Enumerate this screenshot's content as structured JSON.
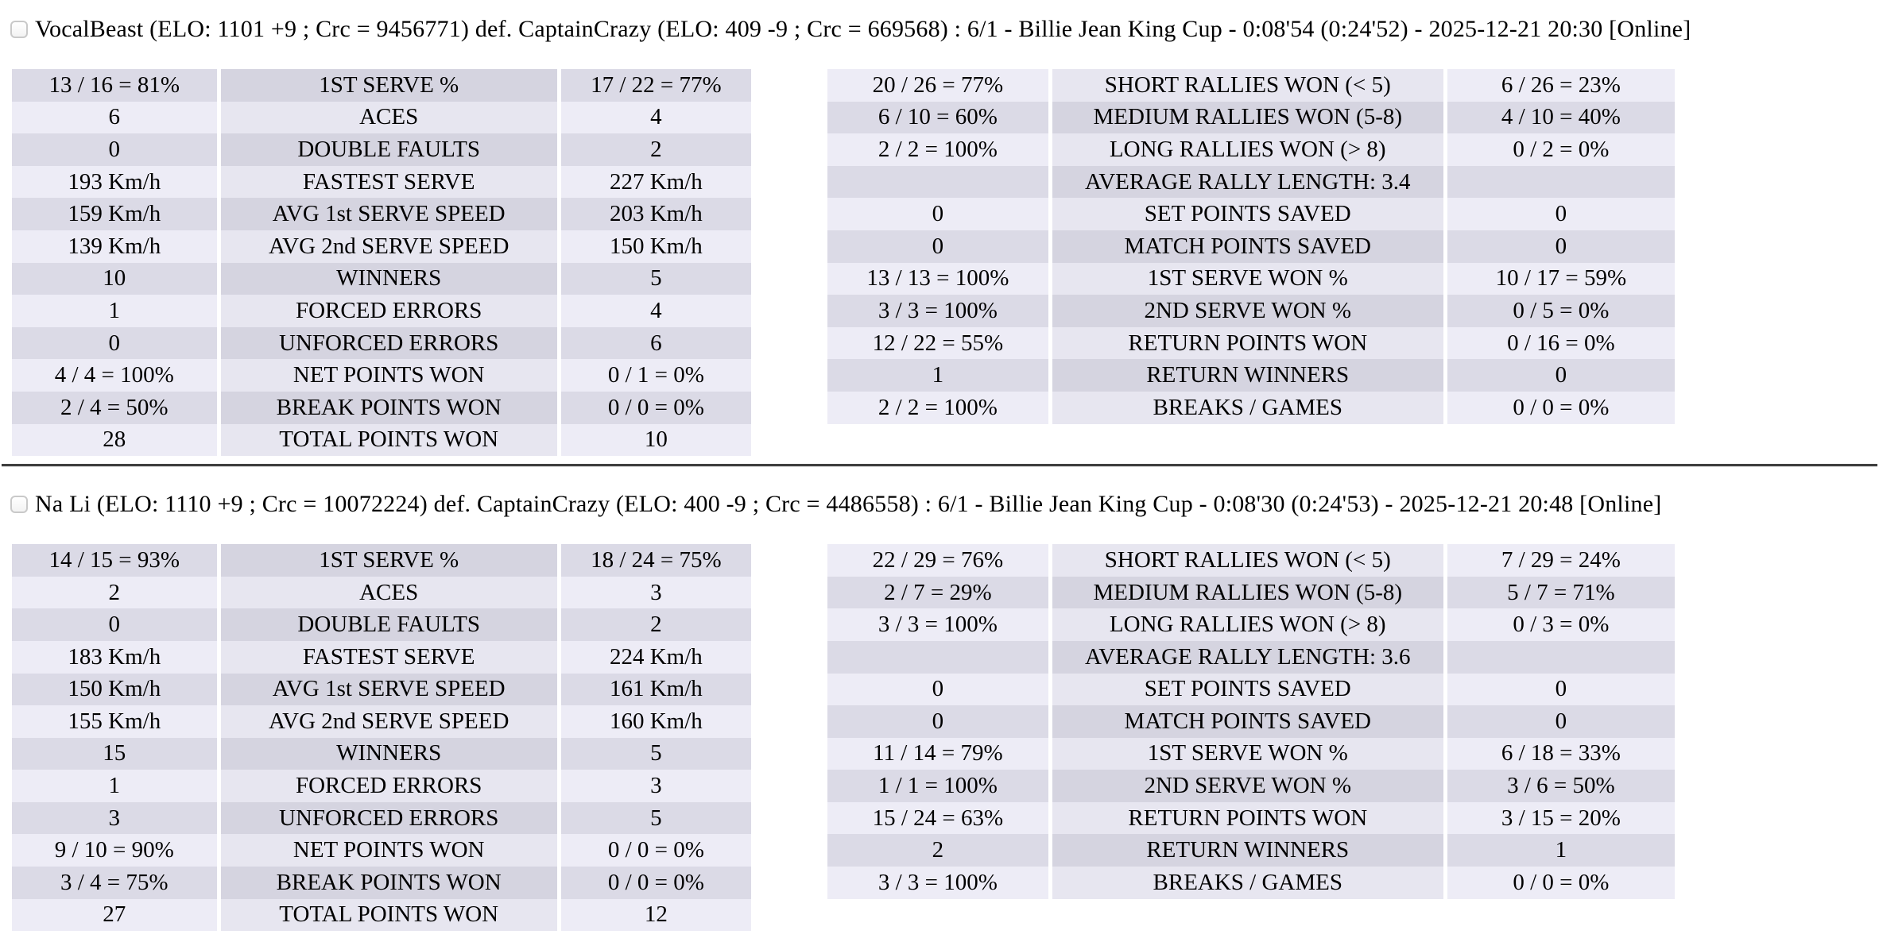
{
  "theme": {
    "background": "#FFFFFF",
    "text_color": "#000000",
    "row_light": "#EDECF6",
    "row_light_center": "#E7E6F0",
    "row_dark": "#DBDAE6",
    "row_dark_center": "#D5D4E0"
  },
  "matches": [
    {
      "title": "VocalBeast (ELO: 1101 +9 ; Crc = 9456771) def. CaptainCrazy (ELO: 409 -9 ; Crc = 669568) : 6/1 - Billie Jean King Cup - 0:08'54 (0:24'52) - 2025-12-21 20:30 [Online]",
      "checkbox_checked": false,
      "serve_stats": [
        {
          "p1": "13 / 16 = 81%",
          "label": "1ST SERVE %",
          "p2": "17 / 22 = 77%"
        },
        {
          "p1": "6",
          "label": "ACES",
          "p2": "4"
        },
        {
          "p1": "0",
          "label": "DOUBLE FAULTS",
          "p2": "2"
        },
        {
          "p1": "193 Km/h",
          "label": "FASTEST SERVE",
          "p2": "227 Km/h"
        },
        {
          "p1": "159 Km/h",
          "label": "AVG 1st SERVE SPEED",
          "p2": "203 Km/h"
        },
        {
          "p1": "139 Km/h",
          "label": "AVG 2nd SERVE SPEED",
          "p2": "150 Km/h"
        },
        {
          "p1": "10",
          "label": "WINNERS",
          "p2": "5"
        },
        {
          "p1": "1",
          "label": "FORCED ERRORS",
          "p2": "4"
        },
        {
          "p1": "0",
          "label": "UNFORCED ERRORS",
          "p2": "6"
        },
        {
          "p1": "4 / 4 = 100%",
          "label": "NET POINTS WON",
          "p2": "0 / 1 = 0%"
        },
        {
          "p1": "2 / 4 = 50%",
          "label": "BREAK POINTS WON",
          "p2": "0 / 0 = 0%"
        },
        {
          "p1": "28",
          "label": "TOTAL POINTS WON",
          "p2": "10"
        }
      ],
      "rally_stats": [
        {
          "p1": "20 / 26 = 77%",
          "label": "SHORT RALLIES WON (< 5)",
          "p2": "6 / 26 = 23%"
        },
        {
          "p1": "6 / 10 = 60%",
          "label": "MEDIUM RALLIES WON (5-8)",
          "p2": "4 / 10 = 40%"
        },
        {
          "p1": "2 / 2 = 100%",
          "label": "LONG RALLIES WON (> 8)",
          "p2": "0 / 2 = 0%"
        },
        {
          "p1": "",
          "label": "AVERAGE RALLY LENGTH: 3.4",
          "p2": ""
        },
        {
          "p1": "0",
          "label": "SET POINTS SAVED",
          "p2": "0"
        },
        {
          "p1": "0",
          "label": "MATCH POINTS SAVED",
          "p2": "0"
        },
        {
          "p1": "13 / 13 = 100%",
          "label": "1ST SERVE WON %",
          "p2": "10 / 17 = 59%"
        },
        {
          "p1": "3 / 3 = 100%",
          "label": "2ND SERVE WON %",
          "p2": "0 / 5 = 0%"
        },
        {
          "p1": "12 / 22 = 55%",
          "label": "RETURN POINTS WON",
          "p2": "0 / 16 = 0%"
        },
        {
          "p1": "1",
          "label": "RETURN WINNERS",
          "p2": "0"
        },
        {
          "p1": "2 / 2 = 100%",
          "label": "BREAKS / GAMES",
          "p2": "0 / 0 = 0%"
        }
      ]
    },
    {
      "title": "Na Li (ELO: 1110 +9 ; Crc = 10072224) def. CaptainCrazy (ELO: 400 -9 ; Crc = 4486558) : 6/1 - Billie Jean King Cup - 0:08'30 (0:24'53) - 2025-12-21 20:48 [Online]",
      "checkbox_checked": false,
      "serve_stats": [
        {
          "p1": "14 / 15 = 93%",
          "label": "1ST SERVE %",
          "p2": "18 / 24 = 75%"
        },
        {
          "p1": "2",
          "label": "ACES",
          "p2": "3"
        },
        {
          "p1": "0",
          "label": "DOUBLE FAULTS",
          "p2": "2"
        },
        {
          "p1": "183 Km/h",
          "label": "FASTEST SERVE",
          "p2": "224 Km/h"
        },
        {
          "p1": "150 Km/h",
          "label": "AVG 1st SERVE SPEED",
          "p2": "161 Km/h"
        },
        {
          "p1": "155 Km/h",
          "label": "AVG 2nd SERVE SPEED",
          "p2": "160 Km/h"
        },
        {
          "p1": "15",
          "label": "WINNERS",
          "p2": "5"
        },
        {
          "p1": "1",
          "label": "FORCED ERRORS",
          "p2": "3"
        },
        {
          "p1": "3",
          "label": "UNFORCED ERRORS",
          "p2": "5"
        },
        {
          "p1": "9 / 10 = 90%",
          "label": "NET POINTS WON",
          "p2": "0 / 0 = 0%"
        },
        {
          "p1": "3 / 4 = 75%",
          "label": "BREAK POINTS WON",
          "p2": "0 / 0 = 0%"
        },
        {
          "p1": "27",
          "label": "TOTAL POINTS WON",
          "p2": "12"
        }
      ],
      "rally_stats": [
        {
          "p1": "22 / 29 = 76%",
          "label": "SHORT RALLIES WON (< 5)",
          "p2": "7 / 29 = 24%"
        },
        {
          "p1": "2 / 7 = 29%",
          "label": "MEDIUM RALLIES WON (5-8)",
          "p2": "5 / 7 = 71%"
        },
        {
          "p1": "3 / 3 = 100%",
          "label": "LONG RALLIES WON (> 8)",
          "p2": "0 / 3 = 0%"
        },
        {
          "p1": "",
          "label": "AVERAGE RALLY LENGTH: 3.6",
          "p2": ""
        },
        {
          "p1": "0",
          "label": "SET POINTS SAVED",
          "p2": "0"
        },
        {
          "p1": "0",
          "label": "MATCH POINTS SAVED",
          "p2": "0"
        },
        {
          "p1": "11 / 14 = 79%",
          "label": "1ST SERVE WON %",
          "p2": "6 / 18 = 33%"
        },
        {
          "p1": "1 / 1 = 100%",
          "label": "2ND SERVE WON %",
          "p2": "3 / 6 = 50%"
        },
        {
          "p1": "15 / 24 = 63%",
          "label": "RETURN POINTS WON",
          "p2": "3 / 15 = 20%"
        },
        {
          "p1": "2",
          "label": "RETURN WINNERS",
          "p2": "1"
        },
        {
          "p1": "3 / 3 = 100%",
          "label": "BREAKS / GAMES",
          "p2": "0 / 0 = 0%"
        }
      ]
    }
  ]
}
